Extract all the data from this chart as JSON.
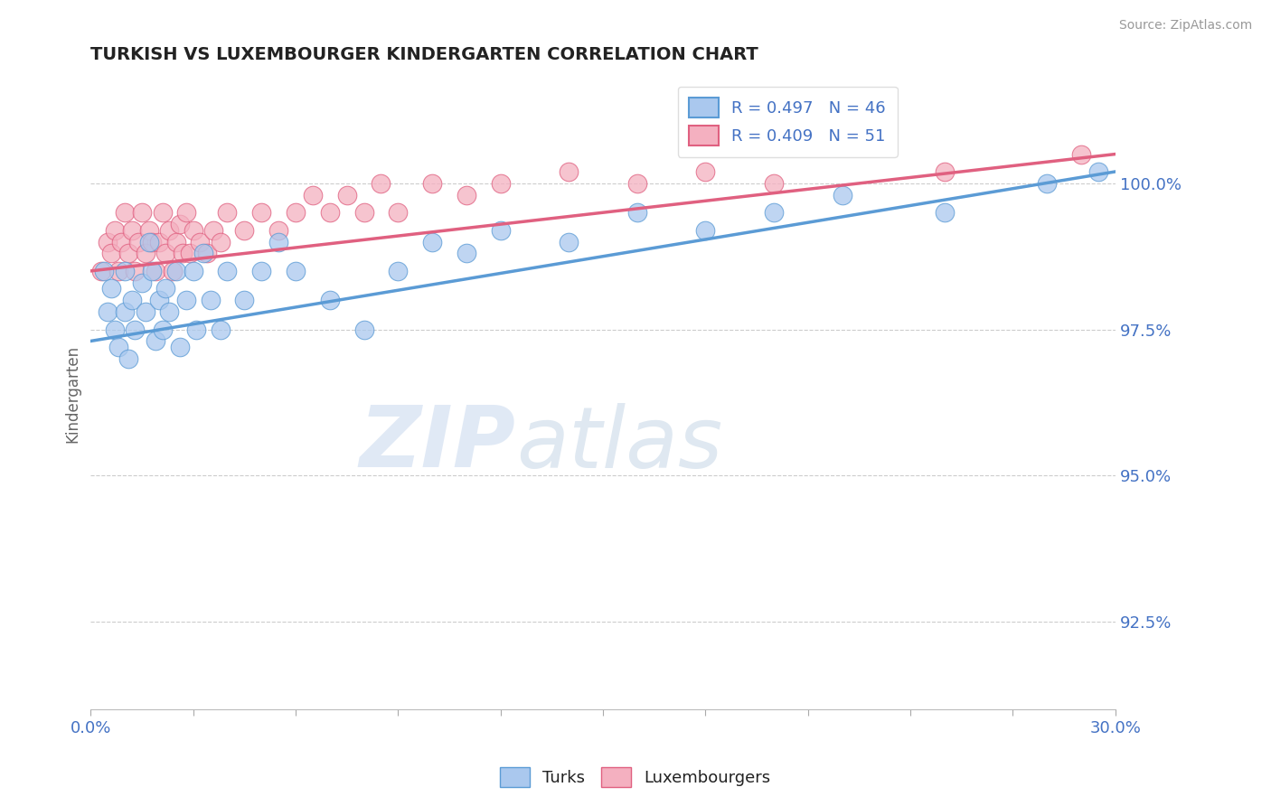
{
  "title": "TURKISH VS LUXEMBOURGER KINDERGARTEN CORRELATION CHART",
  "source_text": "Source: ZipAtlas.com",
  "ylabel": "Kindergarten",
  "xmin": 0.0,
  "xmax": 30.0,
  "ymin": 91.0,
  "ymax": 101.8,
  "yticks": [
    92.5,
    95.0,
    97.5,
    100.0
  ],
  "ytick_labels": [
    "92.5%",
    "95.0%",
    "97.5%",
    "100.0%"
  ],
  "turks_R": 0.497,
  "turks_N": 46,
  "lux_R": 0.409,
  "lux_N": 51,
  "turks_color": "#aac8ee",
  "lux_color": "#f4b0c0",
  "turks_line_color": "#5b9bd5",
  "lux_line_color": "#e06080",
  "legend_color_text": "#4472c4",
  "background_color": "#ffffff",
  "watermark_ZIP_color": "#c8d8ee",
  "watermark_atlas_color": "#c0cce0",
  "grid_color": "#cccccc",
  "turks_line_x0": 0.0,
  "turks_line_y0": 97.3,
  "turks_line_x1": 30.0,
  "turks_line_y1": 100.2,
  "lux_line_x0": 0.0,
  "lux_line_y0": 98.5,
  "lux_line_x1": 30.0,
  "lux_line_y1": 100.5,
  "turks_x": [
    0.4,
    0.5,
    0.6,
    0.7,
    0.8,
    1.0,
    1.0,
    1.1,
    1.2,
    1.3,
    1.5,
    1.6,
    1.7,
    1.8,
    1.9,
    2.0,
    2.1,
    2.2,
    2.3,
    2.5,
    2.6,
    2.8,
    3.0,
    3.1,
    3.3,
    3.5,
    3.8,
    4.0,
    4.5,
    5.0,
    5.5,
    6.0,
    7.0,
    8.0,
    9.0,
    10.0,
    11.0,
    12.0,
    14.0,
    16.0,
    18.0,
    20.0,
    22.0,
    25.0,
    28.0,
    29.5
  ],
  "turks_y": [
    98.5,
    97.8,
    98.2,
    97.5,
    97.2,
    97.8,
    98.5,
    97.0,
    98.0,
    97.5,
    98.3,
    97.8,
    99.0,
    98.5,
    97.3,
    98.0,
    97.5,
    98.2,
    97.8,
    98.5,
    97.2,
    98.0,
    98.5,
    97.5,
    98.8,
    98.0,
    97.5,
    98.5,
    98.0,
    98.5,
    99.0,
    98.5,
    98.0,
    97.5,
    98.5,
    99.0,
    98.8,
    99.2,
    99.0,
    99.5,
    99.2,
    99.5,
    99.8,
    99.5,
    100.0,
    100.2
  ],
  "lux_x": [
    0.3,
    0.5,
    0.6,
    0.7,
    0.8,
    0.9,
    1.0,
    1.1,
    1.2,
    1.3,
    1.4,
    1.5,
    1.6,
    1.7,
    1.8,
    1.9,
    2.0,
    2.1,
    2.2,
    2.3,
    2.4,
    2.5,
    2.6,
    2.7,
    2.8,
    2.9,
    3.0,
    3.2,
    3.4,
    3.6,
    3.8,
    4.0,
    4.5,
    5.0,
    5.5,
    6.0,
    6.5,
    7.0,
    7.5,
    8.0,
    8.5,
    9.0,
    10.0,
    11.0,
    12.0,
    14.0,
    16.0,
    18.0,
    20.0,
    25.0,
    29.0
  ],
  "lux_y": [
    98.5,
    99.0,
    98.8,
    99.2,
    98.5,
    99.0,
    99.5,
    98.8,
    99.2,
    98.5,
    99.0,
    99.5,
    98.8,
    99.2,
    99.0,
    98.5,
    99.0,
    99.5,
    98.8,
    99.2,
    98.5,
    99.0,
    99.3,
    98.8,
    99.5,
    98.8,
    99.2,
    99.0,
    98.8,
    99.2,
    99.0,
    99.5,
    99.2,
    99.5,
    99.2,
    99.5,
    99.8,
    99.5,
    99.8,
    99.5,
    100.0,
    99.5,
    100.0,
    99.8,
    100.0,
    100.2,
    100.0,
    100.2,
    100.0,
    100.2,
    100.5
  ]
}
